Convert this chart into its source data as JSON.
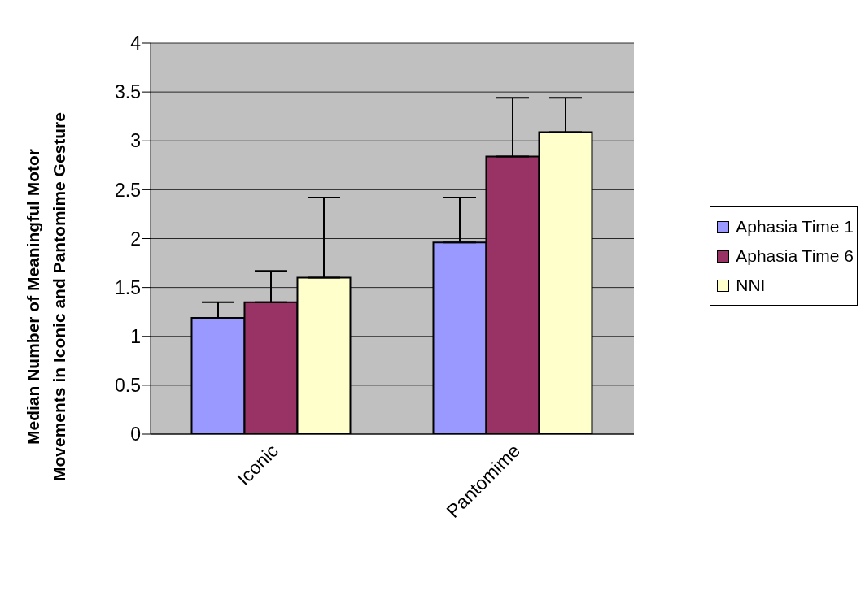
{
  "chart_data": {
    "type": "bar",
    "ylabel": "Median Number of Meaningful Motor Movements in Iconic and Pantomime Gesture",
    "categories": [
      "Iconic",
      "Pantomime"
    ],
    "series": [
      {
        "name": "Aphasia Time 1",
        "color": "#9999ff",
        "values": [
          1.19,
          1.96
        ],
        "errors": [
          [
            1.19,
            1.35
          ],
          [
            1.96,
            2.42
          ]
        ]
      },
      {
        "name": "Aphasia Time 6",
        "color": "#993366",
        "values": [
          1.35,
          2.84
        ],
        "errors": [
          [
            1.35,
            1.67
          ],
          [
            2.84,
            3.44
          ]
        ]
      },
      {
        "name": "NNI",
        "color": "#ffffcc",
        "values": [
          1.6,
          3.09
        ],
        "errors": [
          [
            1.6,
            2.42
          ],
          [
            3.09,
            3.44
          ]
        ]
      }
    ],
    "ylim": [
      0,
      4
    ],
    "yticks": [
      0,
      0.5,
      1,
      1.5,
      2,
      2.5,
      3,
      3.5,
      4
    ],
    "grid": "y",
    "legend": "right"
  }
}
